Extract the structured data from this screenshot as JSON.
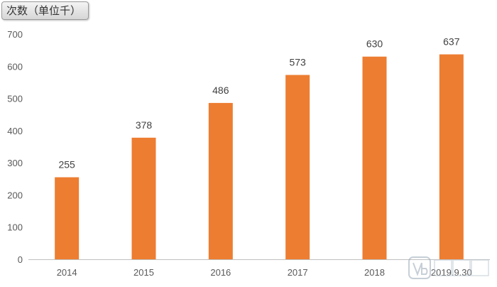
{
  "unit_label": "次数（单位千）",
  "colors": {
    "bar": "#ED7D31",
    "axis": "#BFBFBF",
    "tick_text": "#595959",
    "label_text": "#404040"
  },
  "chart_data": {
    "type": "bar",
    "categories": [
      "2014",
      "2015",
      "2016",
      "2017",
      "2018",
      "2019.9.30"
    ],
    "values": [
      255,
      378,
      486,
      573,
      630,
      637
    ],
    "ylim": [
      0,
      700
    ],
    "yticks": [
      0,
      100,
      200,
      300,
      400,
      500,
      600,
      700
    ],
    "grid": false,
    "data_labels": true
  }
}
